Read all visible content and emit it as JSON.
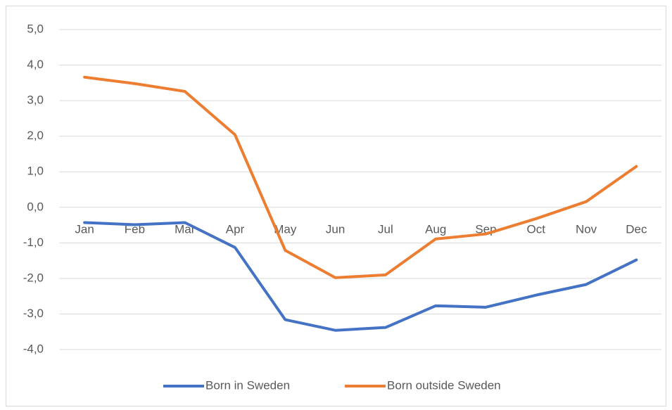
{
  "chart_data": {
    "type": "line",
    "categories": [
      "Jan",
      "Feb",
      "Mar",
      "Apr",
      "May",
      "Jun",
      "Jul",
      "Aug",
      "Sep",
      "Oct",
      "Nov",
      "Dec"
    ],
    "series": [
      {
        "name": "Born in Sweden",
        "color": "#4472c4",
        "values": [
          -0.43,
          -0.49,
          -0.43,
          -1.13,
          -3.16,
          -3.46,
          -3.38,
          -2.77,
          -2.81,
          -2.47,
          -2.17,
          -1.48
        ]
      },
      {
        "name": "Born outside Sweden",
        "color": "#ed7d31",
        "values": [
          3.66,
          3.48,
          3.26,
          2.04,
          -1.21,
          -1.98,
          -1.9,
          -0.89,
          -0.75,
          -0.32,
          0.16,
          1.15
        ]
      }
    ],
    "ylim": [
      -4,
      5
    ],
    "yticks": [
      {
        "value": -4,
        "label": "-4,0"
      },
      {
        "value": -3,
        "label": "-3,0"
      },
      {
        "value": -2,
        "label": "-2,0"
      },
      {
        "value": -1,
        "label": "-1,0"
      },
      {
        "value": 0,
        "label": "0,0"
      },
      {
        "value": 1,
        "label": "1,0"
      },
      {
        "value": 2,
        "label": "2,0"
      },
      {
        "value": 3,
        "label": "3,0"
      },
      {
        "value": 4,
        "label": "4,0"
      },
      {
        "value": 5,
        "label": "5,0"
      }
    ],
    "grid": true,
    "legend": "bottom"
  }
}
